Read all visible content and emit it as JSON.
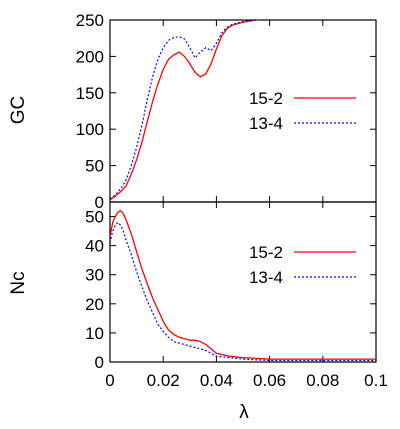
{
  "chart_data": [
    {
      "type": "line",
      "panel": "top",
      "ylabel": "GC",
      "xlabel": "",
      "xlim": [
        0,
        0.1
      ],
      "ylim": [
        0,
        250
      ],
      "x_ticks": [
        "0",
        "0.02",
        "0.04",
        "0.06",
        "0.08",
        "0.1"
      ],
      "y_ticks": [
        "0",
        "50",
        "100",
        "150",
        "200",
        "250"
      ],
      "legend_position": "right",
      "grid": false,
      "series": [
        {
          "name": "15-2",
          "color": "#ff0000",
          "style": "solid",
          "x": [
            0,
            0.002,
            0.004,
            0.006,
            0.008,
            0.01,
            0.012,
            0.014,
            0.016,
            0.018,
            0.02,
            0.022,
            0.024,
            0.026,
            0.028,
            0.03,
            0.032,
            0.034,
            0.036,
            0.038,
            0.04,
            0.042,
            0.044,
            0.046,
            0.05,
            0.055,
            0.06,
            0.07,
            0.08,
            0.09,
            0.1
          ],
          "y": [
            3,
            8,
            14,
            22,
            38,
            58,
            82,
            110,
            138,
            162,
            182,
            196,
            202,
            206,
            200,
            190,
            178,
            172,
            176,
            190,
            210,
            228,
            238,
            243,
            247,
            250,
            252,
            252,
            252,
            252,
            252
          ]
        },
        {
          "name": "13-4",
          "color": "#0000ff",
          "style": "dotted",
          "x": [
            0,
            0.002,
            0.004,
            0.006,
            0.008,
            0.01,
            0.012,
            0.014,
            0.016,
            0.018,
            0.02,
            0.022,
            0.024,
            0.026,
            0.028,
            0.03,
            0.032,
            0.034,
            0.036,
            0.038,
            0.04,
            0.042,
            0.044,
            0.046,
            0.05,
            0.055,
            0.06,
            0.07,
            0.08,
            0.09,
            0.1
          ],
          "y": [
            4,
            10,
            18,
            30,
            50,
            75,
            105,
            140,
            172,
            196,
            212,
            222,
            226,
            227,
            224,
            212,
            198,
            206,
            212,
            208,
            218,
            232,
            240,
            244,
            248,
            250,
            252,
            252,
            252,
            252,
            252
          ]
        }
      ]
    },
    {
      "type": "line",
      "panel": "bottom",
      "ylabel": "Nc",
      "xlabel": "λ",
      "xlim": [
        0,
        0.1
      ],
      "ylim": [
        0,
        55
      ],
      "x_ticks": [
        "0",
        "0.02",
        "0.04",
        "0.06",
        "0.08",
        "0.1"
      ],
      "y_ticks": [
        "0",
        "10",
        "20",
        "30",
        "40",
        "50"
      ],
      "legend_position": "right",
      "grid": false,
      "series": [
        {
          "name": "15-2",
          "color": "#ff0000",
          "style": "solid",
          "x": [
            0,
            0.001,
            0.002,
            0.003,
            0.004,
            0.005,
            0.006,
            0.008,
            0.01,
            0.012,
            0.014,
            0.016,
            0.018,
            0.02,
            0.022,
            0.024,
            0.026,
            0.028,
            0.03,
            0.032,
            0.034,
            0.036,
            0.038,
            0.04,
            0.045,
            0.05,
            0.06,
            0.07,
            0.08,
            0.09,
            0.1
          ],
          "y": [
            43,
            48,
            50,
            51.5,
            52,
            51,
            49,
            44,
            38,
            32,
            27,
            22,
            18,
            14,
            11,
            9.5,
            8.5,
            8,
            7.5,
            7.5,
            7,
            6,
            4.5,
            3,
            2,
            1.5,
            1,
            1,
            1,
            1,
            1
          ]
        },
        {
          "name": "13-4",
          "color": "#0000ff",
          "style": "dotted",
          "x": [
            0,
            0.001,
            0.002,
            0.003,
            0.004,
            0.005,
            0.006,
            0.008,
            0.01,
            0.012,
            0.014,
            0.016,
            0.018,
            0.02,
            0.022,
            0.024,
            0.026,
            0.028,
            0.03,
            0.032,
            0.034,
            0.036,
            0.038,
            0.04,
            0.045,
            0.05,
            0.06,
            0.07,
            0.08,
            0.09,
            0.1
          ],
          "y": [
            41,
            45,
            47,
            48,
            47,
            45,
            42,
            37,
            31,
            26,
            21,
            17,
            13,
            10.5,
            8.5,
            7,
            6.5,
            6,
            5.5,
            5,
            4.5,
            4,
            3,
            2,
            1.5,
            1,
            0.5,
            0.5,
            0.5,
            0.5,
            0.5
          ]
        }
      ]
    }
  ]
}
